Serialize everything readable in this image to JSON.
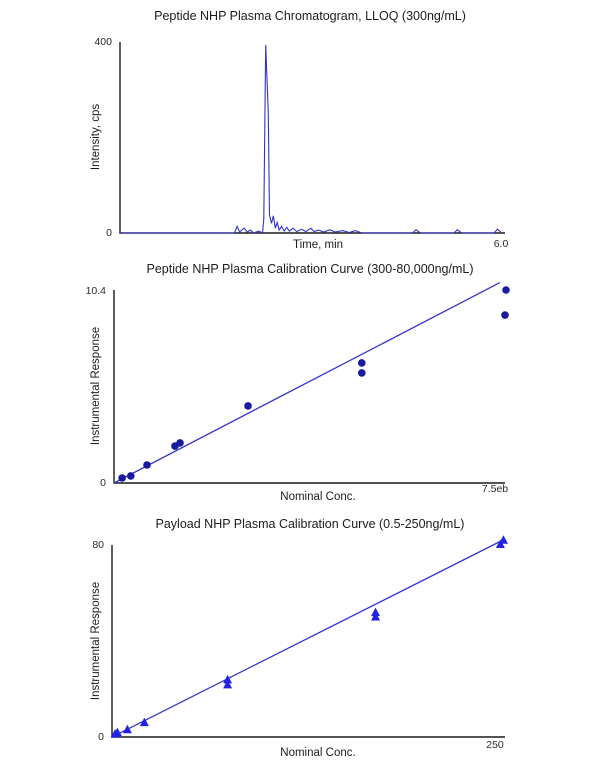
{
  "page": {
    "background": "#ffffff"
  },
  "chart_data": [
    {
      "type": "line",
      "title": "Peptide NHP Plasma Chromatogram, LLOQ (300ng/mL)",
      "xlabel": "Time, min",
      "ylabel": "Intensity, cps",
      "xlim": [
        0,
        6.05
      ],
      "ylim": [
        0,
        400
      ],
      "y_top_tick": "400",
      "y_bottom_tick": "0",
      "x_right_tick": "6.0",
      "line_color": "#3333cc",
      "legend": "none",
      "grid": false,
      "trace": [
        [
          0,
          0
        ],
        [
          1.8,
          0
        ],
        [
          1.84,
          14
        ],
        [
          1.88,
          2
        ],
        [
          1.95,
          10
        ],
        [
          2.0,
          2
        ],
        [
          2.05,
          6
        ],
        [
          2.1,
          0
        ],
        [
          2.18,
          4
        ],
        [
          2.24,
          0
        ],
        [
          2.26,
          30
        ],
        [
          2.29,
          394
        ],
        [
          2.33,
          250
        ],
        [
          2.35,
          38
        ],
        [
          2.38,
          20
        ],
        [
          2.41,
          36
        ],
        [
          2.44,
          10
        ],
        [
          2.47,
          22
        ],
        [
          2.5,
          6
        ],
        [
          2.54,
          14
        ],
        [
          2.58,
          4
        ],
        [
          2.62,
          12
        ],
        [
          2.66,
          4
        ],
        [
          2.72,
          10
        ],
        [
          2.78,
          3
        ],
        [
          2.85,
          8
        ],
        [
          2.92,
          3
        ],
        [
          3.0,
          10
        ],
        [
          3.05,
          3
        ],
        [
          3.12,
          6
        ],
        [
          3.2,
          2
        ],
        [
          3.3,
          7
        ],
        [
          3.38,
          2
        ],
        [
          3.5,
          5
        ],
        [
          3.6,
          1
        ],
        [
          3.7,
          5
        ],
        [
          3.8,
          0
        ],
        [
          4.6,
          0
        ],
        [
          4.65,
          7
        ],
        [
          4.72,
          0
        ],
        [
          5.25,
          0
        ],
        [
          5.3,
          7
        ],
        [
          5.37,
          0
        ],
        [
          5.88,
          0
        ],
        [
          5.93,
          8
        ],
        [
          6.0,
          0
        ]
      ],
      "peak": {
        "time_min": 2.29,
        "intensity_cps": 394
      }
    },
    {
      "type": "scatter",
      "title": "Peptide NHP Plasma Calibration Curve (300-80,000ng/mL)",
      "xlabel": "Nominal Conc.",
      "ylabel": "Instrumental Response",
      "xlim": [
        0,
        77000
      ],
      "ylim": [
        0,
        10.4
      ],
      "y_top_tick": "10.4",
      "y_bottom_tick": "0",
      "x_right_tick": "7.5eb",
      "marker": "circle",
      "marker_color": "#1a1a9e",
      "line_color": "#3333cc",
      "legend": "none",
      "grid": false,
      "points": [
        [
          1600,
          0.27
        ],
        [
          3300,
          0.38
        ],
        [
          6500,
          0.97
        ],
        [
          12000,
          1.99
        ],
        [
          13000,
          2.16
        ],
        [
          26400,
          4.15
        ],
        [
          48800,
          5.93
        ],
        [
          48800,
          6.47
        ],
        [
          77000,
          9.05
        ],
        [
          77200,
          10.4
        ]
      ],
      "fit_line": [
        [
          0,
          0.0
        ],
        [
          76000,
          10.8
        ]
      ]
    },
    {
      "type": "scatter",
      "title": "Payload NHP Plasma Calibration Curve (0.5-250ng/mL)",
      "xlabel": "Nominal Conc.",
      "ylabel": "Instrumental Response",
      "xlim": [
        0,
        255
      ],
      "ylim": [
        0,
        80
      ],
      "y_top_tick": "80",
      "y_bottom_tick": "0",
      "x_right_tick": "250",
      "marker": "triangle",
      "marker_color": "#2222e6",
      "line_color": "#3333cc",
      "legend": "none",
      "grid": false,
      "points": [
        [
          2,
          1.2
        ],
        [
          3.5,
          1.8
        ],
        [
          10,
          3.0
        ],
        [
          21,
          6.0
        ],
        [
          75,
          21.7
        ],
        [
          75,
          23.8
        ],
        [
          171,
          50.0
        ],
        [
          171,
          51.8
        ],
        [
          252,
          80.2
        ],
        [
          254,
          82.0
        ]
      ],
      "fit_line": [
        [
          0,
          0.0
        ],
        [
          255,
          82.5
        ]
      ]
    }
  ]
}
